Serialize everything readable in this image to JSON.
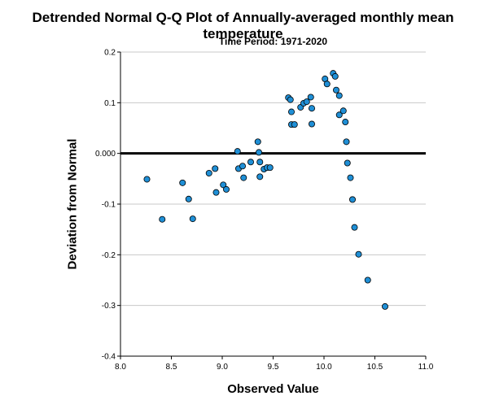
{
  "chart_data": {
    "type": "scatter",
    "title": "Detrended Normal Q-Q Plot of Annually-averaged monthly mean temperature",
    "subtitle": "Time Period: 1971-2020",
    "xlabel": "Observed Value",
    "ylabel": "Deviation from Normal",
    "xlim": [
      8.0,
      11.0
    ],
    "ylim": [
      -0.4,
      0.2
    ],
    "x_ticks": [
      8.0,
      8.5,
      9.0,
      9.5,
      10.0,
      10.5,
      11.0
    ],
    "x_tick_labels": [
      "8.0",
      "8.5",
      "9.0",
      "9.5",
      "10.0",
      "10.5",
      "11.0"
    ],
    "y_ticks": [
      -0.4,
      -0.3,
      -0.2,
      -0.1,
      0.0,
      0.1,
      0.2
    ],
    "y_tick_labels": [
      "-0.4",
      "-0.3",
      "-0.2",
      "-0.1",
      "0.000",
      "0.1",
      "0.2"
    ],
    "grid": "horizontal",
    "reference_line_y": 0.0,
    "marker_color": "#1f8fd6",
    "marker_edge_color": "#000000",
    "reference_line_color": "#000000",
    "points": [
      {
        "x": 8.26,
        "y": -0.051
      },
      {
        "x": 8.41,
        "y": -0.13
      },
      {
        "x": 8.61,
        "y": -0.058
      },
      {
        "x": 8.67,
        "y": -0.09
      },
      {
        "x": 8.71,
        "y": -0.129
      },
      {
        "x": 8.87,
        "y": -0.039
      },
      {
        "x": 8.93,
        "y": -0.03
      },
      {
        "x": 8.94,
        "y": -0.077
      },
      {
        "x": 9.01,
        "y": -0.062
      },
      {
        "x": 9.04,
        "y": -0.071
      },
      {
        "x": 9.15,
        "y": 0.004
      },
      {
        "x": 9.16,
        "y": -0.03
      },
      {
        "x": 9.2,
        "y": -0.025
      },
      {
        "x": 9.21,
        "y": -0.048
      },
      {
        "x": 9.28,
        "y": -0.017
      },
      {
        "x": 9.35,
        "y": 0.023
      },
      {
        "x": 9.36,
        "y": 0.002
      },
      {
        "x": 9.37,
        "y": -0.017
      },
      {
        "x": 9.37,
        "y": -0.046
      },
      {
        "x": 9.41,
        "y": -0.031
      },
      {
        "x": 9.44,
        "y": -0.028
      },
      {
        "x": 9.47,
        "y": -0.028
      },
      {
        "x": 9.65,
        "y": 0.11
      },
      {
        "x": 9.67,
        "y": 0.106
      },
      {
        "x": 9.68,
        "y": 0.082
      },
      {
        "x": 9.68,
        "y": 0.057
      },
      {
        "x": 9.71,
        "y": 0.057
      },
      {
        "x": 9.77,
        "y": 0.091
      },
      {
        "x": 9.8,
        "y": 0.099
      },
      {
        "x": 9.83,
        "y": 0.102
      },
      {
        "x": 9.87,
        "y": 0.111
      },
      {
        "x": 9.88,
        "y": 0.089
      },
      {
        "x": 9.88,
        "y": 0.058
      },
      {
        "x": 10.01,
        "y": 0.147
      },
      {
        "x": 10.03,
        "y": 0.137
      },
      {
        "x": 10.09,
        "y": 0.158
      },
      {
        "x": 10.11,
        "y": 0.152
      },
      {
        "x": 10.12,
        "y": 0.125
      },
      {
        "x": 10.15,
        "y": 0.114
      },
      {
        "x": 10.15,
        "y": 0.076
      },
      {
        "x": 10.19,
        "y": 0.084
      },
      {
        "x": 10.21,
        "y": 0.062
      },
      {
        "x": 10.22,
        "y": 0.023
      },
      {
        "x": 10.23,
        "y": -0.019
      },
      {
        "x": 10.26,
        "y": -0.048
      },
      {
        "x": 10.28,
        "y": -0.091
      },
      {
        "x": 10.3,
        "y": -0.146
      },
      {
        "x": 10.34,
        "y": -0.199
      },
      {
        "x": 10.43,
        "y": -0.25
      },
      {
        "x": 10.6,
        "y": -0.302
      }
    ]
  }
}
